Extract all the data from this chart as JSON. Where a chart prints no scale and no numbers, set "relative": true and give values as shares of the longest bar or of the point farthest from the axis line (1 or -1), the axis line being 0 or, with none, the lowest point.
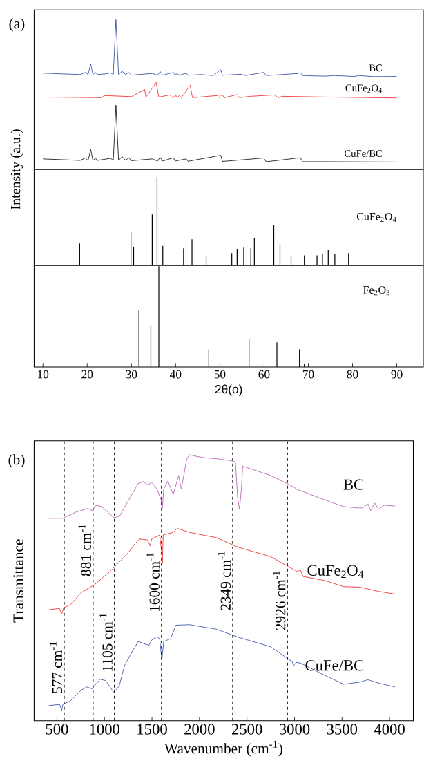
{
  "chart_data": [
    {
      "type": "line",
      "title": "(a)",
      "relative": true,
      "xlim": [
        8,
        96
      ],
      "series": [
        {
          "name": "BC",
          "color": "#2a3d9c",
          "x": [
            10,
            18.4,
            19.6,
            20.2,
            20.8,
            21.3,
            21.9,
            22.3,
            24.1,
            25.3,
            25.9,
            26.5,
            27.1,
            27.9,
            28.7,
            29.4,
            30.0,
            34.7,
            35.9,
            36.5,
            37.1,
            39.5,
            39.9,
            40.3,
            40.8,
            42.4,
            42.8,
            45.8,
            48.5,
            50.2,
            50.6,
            54.8,
            55.7,
            59.9,
            60.5,
            67.7,
            68.2,
            68.7,
            73.8,
            75.9,
            80.4,
            81.5,
            84.6,
            90
          ],
          "values": [
            0.643,
            0.634,
            0.648,
            0.634,
            0.703,
            0.634,
            0.648,
            0.634,
            0.638,
            0.645,
            0.634,
            1,
            0.634,
            0.656,
            0.634,
            0.648,
            0.63,
            0.641,
            0.63,
            0.654,
            0.63,
            0.648,
            0.63,
            0.641,
            0.629,
            0.643,
            0.629,
            0.634,
            0.627,
            0.666,
            0.629,
            0.636,
            0.627,
            0.648,
            0.627,
            0.641,
            0.648,
            0.627,
            0.623,
            0.627,
            0.621,
            0.627,
            0.62,
            0.621
          ]
        },
        {
          "name": "CuFe$_{2}$O$_{4}$",
          "color": "#ee1c1c",
          "x": [
            10,
            23.2,
            24.0,
            30.0,
            33.0,
            33.3,
            35.6,
            36.2,
            38.7,
            39.2,
            40.1,
            40.4,
            40.8,
            41.3,
            43.3,
            43.8,
            49.4,
            49.8,
            50.5,
            51.0,
            53.9,
            54.4,
            56.9,
            62.3,
            63.2,
            64.1,
            74.4,
            90
          ],
          "values": [
            0.483,
            0.479,
            0.493,
            0.486,
            0.533,
            0.483,
            0.58,
            0.483,
            0.497,
            0.479,
            0.492,
            0.479,
            0.492,
            0.479,
            0.562,
            0.479,
            0.493,
            0.479,
            0.501,
            0.479,
            0.499,
            0.479,
            0.488,
            0.497,
            0.479,
            0.488,
            0.483,
            0.477
          ]
        },
        {
          "name": "CuFe/BC",
          "color": "#000000",
          "x": [
            10,
            18.4,
            19.6,
            20.2,
            20.8,
            21.3,
            21.9,
            22.3,
            25.3,
            25.9,
            26.5,
            27.1,
            27.9,
            28.7,
            29.4,
            30.0,
            34.7,
            35.9,
            36.5,
            37.1,
            39.5,
            39.9,
            42.4,
            42.8,
            50.2,
            50.6,
            59.9,
            60.5,
            68.2,
            68.7,
            73.8,
            90
          ],
          "values": [
            0.07,
            0.06,
            0.076,
            0.06,
            0.132,
            0.06,
            0.074,
            0.06,
            0.074,
            0.06,
            0.428,
            0.06,
            0.085,
            0.06,
            0.078,
            0.058,
            0.07,
            0.056,
            0.081,
            0.056,
            0.078,
            0.056,
            0.07,
            0.054,
            0.094,
            0.053,
            0.076,
            0.051,
            0.078,
            0.051,
            0.051,
            0.049
          ]
        }
      ]
    },
    {
      "type": "bar",
      "relative": true,
      "ylabel": "Intensity (a.u.)",
      "xlim": [
        8,
        96
      ],
      "x": [
        18.3,
        29.9,
        30.5,
        34.7,
        35.8,
        37.1,
        41.8,
        43.7,
        46.9,
        52.7,
        53.9,
        55.4,
        57.0,
        57.8,
        62.2,
        63.6,
        66.1,
        69.1,
        71.8,
        72.1,
        73.2,
        74.5,
        76.0,
        79.1
      ],
      "series": [
        {
          "name": "CuFe$_{2}$O$_{4}$",
          "color": "#000000",
          "values": [
            0.248,
            0.383,
            0.212,
            0.577,
            1,
            0.221,
            0.193,
            0.294,
            0.104,
            0.138,
            0.187,
            0.202,
            0.193,
            0.31,
            0.46,
            0.239,
            0.104,
            0.113,
            0.113,
            0.113,
            0.135,
            0.178,
            0.132,
            0.138
          ]
        }
      ]
    },
    {
      "type": "bar",
      "relative": true,
      "xlabel": "2θ(o)",
      "xlim": [
        8,
        96
      ],
      "xticks": [
        10,
        20,
        30,
        40,
        50,
        60,
        70,
        80,
        90
      ],
      "x": [
        31.7,
        34.4,
        36.2,
        47.5,
        56.6,
        62.9,
        68.0,
        69.1
      ],
      "series": [
        {
          "name": "Fe$_{2}$O$_{3}$",
          "color": "#000000",
          "values": [
            0.567,
            0.417,
            1,
            0.175,
            0.28,
            0.245,
            0.175,
            0.032
          ]
        }
      ]
    },
    {
      "type": "line",
      "title": "(b)",
      "relative": true,
      "xlabel": "Wavenumber (cm$^{-1}$)",
      "ylabel": "Transmittance",
      "xlim": [
        260,
        4250
      ],
      "xticks": [
        500,
        1000,
        1500,
        2000,
        2500,
        3000,
        3500,
        4000
      ],
      "series": [
        {
          "name": "BC",
          "color": "#b150b0",
          "x": [
            415,
            557,
            699,
            756,
            827,
            870,
            913,
            970,
            1098,
            1155,
            1240,
            1354,
            1411,
            1453,
            1496,
            1553,
            1596,
            1610,
            1624,
            1667,
            1724,
            1781,
            1809,
            1866,
            1894,
            1951,
            2065,
            2179,
            2321,
            2378,
            2401,
            2421,
            2441,
            2455,
            2748,
            2990,
            3018,
            3317,
            3517,
            3659,
            3716,
            3773,
            3801,
            3844,
            3886,
            3943,
            4057
          ],
          "values": [
            0.761,
            0.761,
            0.784,
            0.79,
            0.798,
            0.79,
            0.81,
            0.805,
            0.764,
            0.767,
            0.82,
            0.891,
            0.899,
            0.886,
            0.896,
            0.871,
            0.83,
            0.8,
            0.871,
            0.901,
            0.851,
            0.922,
            0.871,
            0.983,
            1,
            0.995,
            0.988,
            0.985,
            0.978,
            0.973,
            0.84,
            0.794,
            0.871,
            0.957,
            0.922,
            0.879,
            0.871,
            0.83,
            0.805,
            0.8,
            0.8,
            0.815,
            0.79,
            0.818,
            0.794,
            0.81,
            0.807
          ]
        },
        {
          "name": "CuFe$_{2}$O$_{4}$",
          "color": "#ee1c1c",
          "x": [
            415,
            528,
            551,
            571,
            642,
            756,
            898,
            1012,
            1069,
            1155,
            1240,
            1325,
            1368,
            1453,
            1482,
            1496,
            1581,
            1601,
            1610,
            1618,
            1724,
            1766,
            1894,
            2179,
            2407,
            2748,
            2976,
            3033,
            3061,
            3090,
            3317,
            3517,
            3687,
            3886,
            4057
          ],
          "values": [
            0.417,
            0.422,
            0.4,
            0.425,
            0.436,
            0.481,
            0.512,
            0.547,
            0.564,
            0.596,
            0.627,
            0.667,
            0.683,
            0.68,
            0.657,
            0.683,
            0.698,
            0.637,
            0.591,
            0.698,
            0.708,
            0.723,
            0.708,
            0.688,
            0.652,
            0.617,
            0.571,
            0.56,
            0.568,
            0.542,
            0.527,
            0.504,
            0.502,
            0.486,
            0.476
          ]
        },
        {
          "name": "CuFe/BC",
          "color": "#2d45a0",
          "x": [
            415,
            528,
            551,
            563,
            642,
            756,
            813,
            870,
            955,
            1012,
            1098,
            1155,
            1211,
            1297,
            1325,
            1354,
            1468,
            1496,
            1553,
            1581,
            1604,
            1624,
            1695,
            1752,
            1894,
            2179,
            2407,
            2748,
            2976,
            2990,
            3018,
            3061,
            3317,
            3517,
            3687,
            3773,
            3886,
            4057
          ],
          "values": [
            0.057,
            0.061,
            0.039,
            0.062,
            0.074,
            0.115,
            0.127,
            0.12,
            0.156,
            0.151,
            0.107,
            0.13,
            0.207,
            0.263,
            0.278,
            0.298,
            0.283,
            0.303,
            0.316,
            0.308,
            0.229,
            0.298,
            0.308,
            0.359,
            0.361,
            0.344,
            0.314,
            0.278,
            0.222,
            0.207,
            0.219,
            0.217,
            0.171,
            0.137,
            0.145,
            0.154,
            0.141,
            0.127
          ]
        }
      ],
      "ref_lines": [
        {
          "axis": "x",
          "value": 577,
          "label": "577 cm$^{-1}$",
          "color": "#000000",
          "line_style": "dashed"
        },
        {
          "axis": "x",
          "value": 881,
          "label": "881 cm$^{-1}$",
          "color": "#000000",
          "line_style": "dashed"
        },
        {
          "axis": "x",
          "value": 1105,
          "label": "1105 cm$^{-1}$",
          "color": "#000000",
          "line_style": "dashed"
        },
        {
          "axis": "x",
          "value": 1600,
          "label": "1600 cm$^{-1}$",
          "color": "#000000",
          "line_style": "dashed"
        },
        {
          "axis": "x",
          "value": 2349,
          "label": "2349 cm$^{-1}$",
          "color": "#000000",
          "line_style": "dashed"
        },
        {
          "axis": "x",
          "value": 2926,
          "label": "2926 cm$^{-1}$",
          "color": "#000000",
          "line_style": "dashed"
        }
      ]
    }
  ]
}
